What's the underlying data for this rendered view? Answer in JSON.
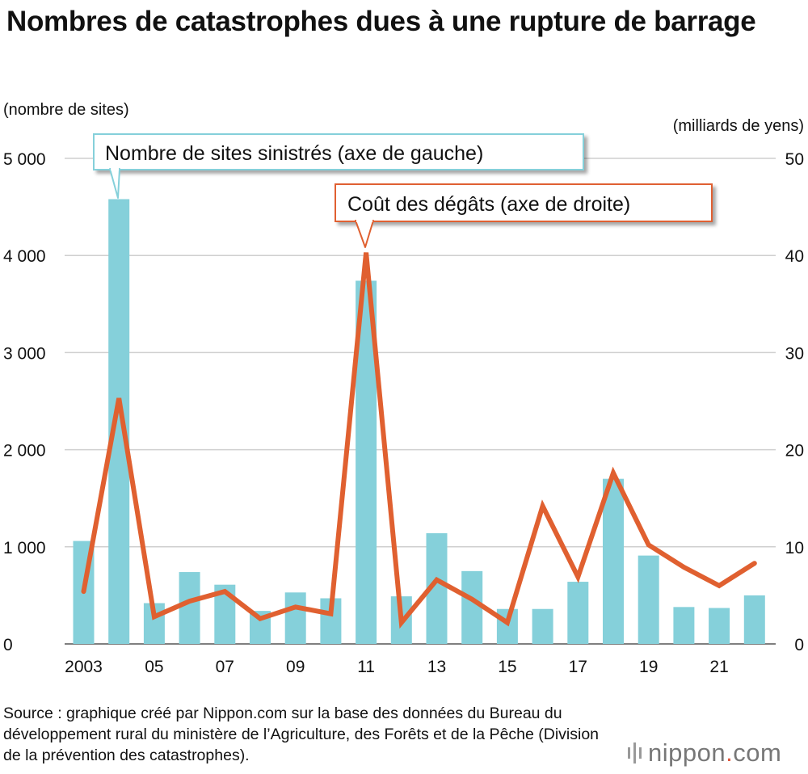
{
  "title": "Nombres de catastrophes dues à une rupture de barrage",
  "source": "Source : graphique créé par Nippon.com sur la base des données du Bureau du développement rural du ministère de l’Agriculture, des Forêts et de la Pêche (Division de la prévention des catastrophes).",
  "logo": {
    "name": "nippon",
    "dot": ".",
    "tld": "com"
  },
  "chart_data": {
    "type": "bar+line",
    "left_axis_unit": "(nombre de sites)",
    "right_axis_unit": "(milliards de yens)",
    "left_ticks": [
      "0",
      "1 000",
      "2 000",
      "3 000",
      "4 000",
      "5 000"
    ],
    "right_ticks": [
      "0",
      "10",
      "20",
      "30",
      "40",
      "50"
    ],
    "left_range": [
      0,
      5000
    ],
    "right_range": [
      0,
      50
    ],
    "x_tick_labels": [
      "2003",
      "05",
      "07",
      "09",
      "11",
      "13",
      "15",
      "17",
      "19",
      "21"
    ],
    "x_tick_years": [
      2003,
      2005,
      2007,
      2009,
      2011,
      2013,
      2015,
      2017,
      2019,
      2021
    ],
    "years": [
      2003,
      2004,
      2005,
      2006,
      2007,
      2008,
      2009,
      2010,
      2011,
      2012,
      2013,
      2014,
      2015,
      2016,
      2017,
      2018,
      2019,
      2020,
      2021,
      2022
    ],
    "grid": "horizontal",
    "series": [
      {
        "name": "Nombre de sites sinistrés (axe de gauche)",
        "type": "bar",
        "axis": "left",
        "color": "#85d0da",
        "values": [
          1060,
          4580,
          420,
          740,
          610,
          340,
          530,
          470,
          3740,
          490,
          1140,
          750,
          360,
          360,
          640,
          1700,
          910,
          380,
          370,
          500
        ]
      },
      {
        "name": "Coût des dégâts (axe de droite)",
        "type": "line",
        "axis": "right",
        "color": "#e06030",
        "values": [
          5.4,
          25.3,
          2.8,
          4.4,
          5.4,
          2.6,
          3.8,
          3.1,
          40.3,
          2.2,
          6.6,
          4.6,
          2.2,
          14.2,
          6.9,
          17.6,
          10.2,
          7.9,
          6.0,
          8.3
        ]
      }
    ],
    "annotations": [
      {
        "text": "Nombre de sites sinistrés (axe de gauche)",
        "target": "bar 2004",
        "color": "#85d0da"
      },
      {
        "text": "Coût des dégâts (axe de droite)",
        "target": "line 2011",
        "color": "#e06030"
      }
    ]
  }
}
